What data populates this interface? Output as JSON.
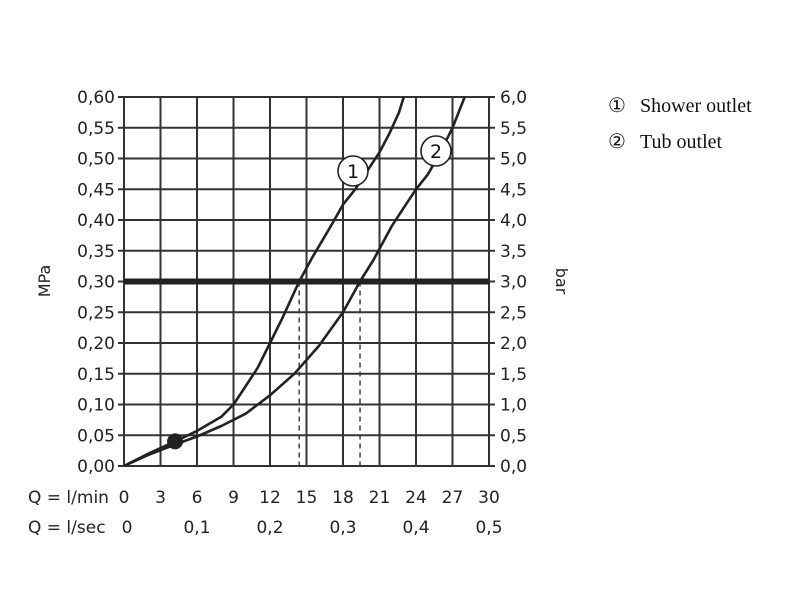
{
  "chart_data": {
    "type": "line",
    "x_unit_label": "Q = l/min",
    "x_alt_unit_label": "Q = l/sec",
    "x_ticks": [
      "0",
      "3",
      "6",
      "9",
      "12",
      "15",
      "18",
      "21",
      "24",
      "27",
      "30"
    ],
    "x_alt_ticks": [
      {
        "value": 0,
        "label": "0"
      },
      {
        "value": 6,
        "label": "0,1"
      },
      {
        "value": 12,
        "label": "0,2"
      },
      {
        "value": 18,
        "label": "0,3"
      },
      {
        "value": 24,
        "label": "0,4"
      },
      {
        "value": 30,
        "label": "0,5"
      }
    ],
    "xlim": [
      0,
      30
    ],
    "ylabel_left": "MPa",
    "ylabel_right": "bar",
    "ylim": [
      0,
      0.6
    ],
    "y_ticks_left": [
      "0,00",
      "0,05",
      "0,10",
      "0,15",
      "0,20",
      "0,25",
      "0,30",
      "0,35",
      "0,40",
      "0,45",
      "0,50",
      "0,55",
      "0,60"
    ],
    "y_ticks_right": [
      "0,0",
      "0,5",
      "1,0",
      "1,5",
      "2,0",
      "2,5",
      "3,0",
      "3,5",
      "4,0",
      "4,5",
      "5,0",
      "5,5",
      "6,0"
    ],
    "grid": true,
    "reference_line": {
      "y": 0.3
    },
    "reference_intersections_x": [
      14.4,
      19.4
    ],
    "start_marker": {
      "x": 4.2,
      "y": 0.04
    },
    "series": [
      {
        "name": "Shower outlet",
        "marker": "1",
        "x": [
          0,
          2,
          4.2,
          6,
          8,
          9,
          10,
          11,
          12,
          13,
          14.4,
          15.5,
          17,
          18,
          19,
          20,
          21,
          21.8,
          22.6,
          23
        ],
        "y": [
          0,
          0.02,
          0.04,
          0.057,
          0.08,
          0.1,
          0.13,
          0.16,
          0.2,
          0.24,
          0.3,
          0.34,
          0.39,
          0.425,
          0.45,
          0.48,
          0.51,
          0.54,
          0.575,
          0.6
        ]
      },
      {
        "name": "Tub outlet",
        "marker": "2",
        "x": [
          0,
          2,
          4.2,
          6,
          8,
          10,
          12,
          14,
          16,
          18,
          19.4,
          20.5,
          22,
          23,
          24,
          25,
          26,
          27,
          28
        ],
        "y": [
          0,
          0.018,
          0.035,
          0.048,
          0.065,
          0.085,
          0.115,
          0.15,
          0.195,
          0.25,
          0.3,
          0.335,
          0.39,
          0.42,
          0.45,
          0.475,
          0.51,
          0.55,
          0.6
        ]
      }
    ]
  },
  "legend": [
    {
      "symbol": "①",
      "label": "Shower outlet"
    },
    {
      "symbol": "②",
      "label": "Tub outlet"
    }
  ]
}
